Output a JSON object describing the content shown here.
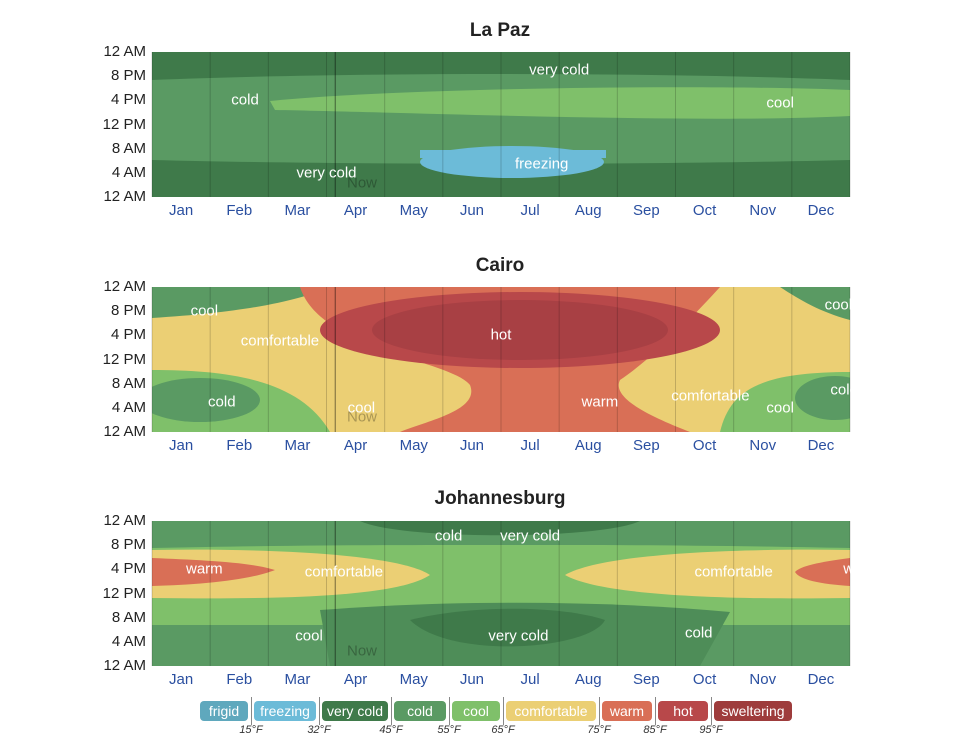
{
  "months": [
    "Jan",
    "Feb",
    "Mar",
    "Apr",
    "May",
    "Jun",
    "Jul",
    "Aug",
    "Sep",
    "Oct",
    "Nov",
    "Dec"
  ],
  "hour_labels": [
    "12 AM",
    "8 PM",
    "4 PM",
    "12 PM",
    "8 AM",
    "4 AM",
    "12 AM"
  ],
  "now_label": "Now",
  "colors": {
    "frigid": "#5fa8bd",
    "freezing": "#6cbbd8",
    "very cold": "#3f7a4a",
    "cold": "#5a9a63",
    "cool": "#7fc06a",
    "comfortable": "#ebcf74",
    "warm": "#d96f56",
    "hot": "#b8484a",
    "sweltering": "#9e3c3c"
  },
  "chart_data": [
    {
      "type": "heatmap",
      "title": "La Paz",
      "x_categories": [
        "Jan",
        "Feb",
        "Mar",
        "Apr",
        "May",
        "Jun",
        "Jul",
        "Aug",
        "Sep",
        "Oct",
        "Nov",
        "Dec"
      ],
      "y_ticks": [
        "12 AM",
        "8 PM",
        "4 PM",
        "12 PM",
        "8 AM",
        "4 AM",
        "12 AM"
      ],
      "labels": [
        {
          "text": "very cold",
          "month": 7.0,
          "hour": 21
        },
        {
          "text": "cold",
          "month": 1.6,
          "hour": 16
        },
        {
          "text": "cool",
          "month": 10.8,
          "hour": 15.5
        },
        {
          "text": "freezing",
          "month": 6.7,
          "hour": 5.5
        },
        {
          "text": "very cold",
          "month": 3.0,
          "hour": 4
        }
      ]
    },
    {
      "type": "heatmap",
      "title": "Cairo",
      "x_categories": [
        "Jan",
        "Feb",
        "Mar",
        "Apr",
        "May",
        "Jun",
        "Jul",
        "Aug",
        "Sep",
        "Oct",
        "Nov",
        "Dec"
      ],
      "y_ticks": [
        "12 AM",
        "8 PM",
        "4 PM",
        "12 PM",
        "8 AM",
        "4 AM",
        "12 AM"
      ],
      "labels": [
        {
          "text": "cool",
          "month": 0.9,
          "hour": 20
        },
        {
          "text": "cool",
          "month": 11.8,
          "hour": 21
        },
        {
          "text": "comfortable",
          "month": 2.2,
          "hour": 15
        },
        {
          "text": "hot",
          "month": 6.0,
          "hour": 16
        },
        {
          "text": "cold",
          "month": 1.2,
          "hour": 5
        },
        {
          "text": "cool",
          "month": 3.6,
          "hour": 4
        },
        {
          "text": "warm",
          "month": 7.7,
          "hour": 5
        },
        {
          "text": "comfortable",
          "month": 9.6,
          "hour": 6
        },
        {
          "text": "cool",
          "month": 10.8,
          "hour": 4
        },
        {
          "text": "cold",
          "month": 11.9,
          "hour": 7
        }
      ]
    },
    {
      "type": "heatmap",
      "title": "Johannesburg",
      "x_categories": [
        "Jan",
        "Feb",
        "Mar",
        "Apr",
        "May",
        "Jun",
        "Jul",
        "Aug",
        "Sep",
        "Oct",
        "Nov",
        "Dec"
      ],
      "y_ticks": [
        "12 AM",
        "8 PM",
        "4 PM",
        "12 PM",
        "8 AM",
        "4 AM",
        "12 AM"
      ],
      "labels": [
        {
          "text": "cold",
          "month": 5.1,
          "hour": 21.5
        },
        {
          "text": "very cold",
          "month": 6.5,
          "hour": 21.5
        },
        {
          "text": "warm",
          "month": 0.9,
          "hour": 16
        },
        {
          "text": "comfortable",
          "month": 3.3,
          "hour": 15.5
        },
        {
          "text": "comfortable",
          "month": 10.0,
          "hour": 15.5
        },
        {
          "text": "warm",
          "month": 12.2,
          "hour": 16
        },
        {
          "text": "cool",
          "month": 2.7,
          "hour": 5
        },
        {
          "text": "very cold",
          "month": 6.3,
          "hour": 5
        },
        {
          "text": "cold",
          "month": 9.4,
          "hour": 5.5
        }
      ]
    }
  ],
  "legend": {
    "items": [
      "frigid",
      "freezing",
      "very cold",
      "cold",
      "cool",
      "comfortable",
      "warm",
      "hot",
      "sweltering"
    ],
    "thresholds": [
      "15°F",
      "32°F",
      "45°F",
      "55°F",
      "65°F",
      "75°F",
      "85°F",
      "95°F"
    ]
  }
}
